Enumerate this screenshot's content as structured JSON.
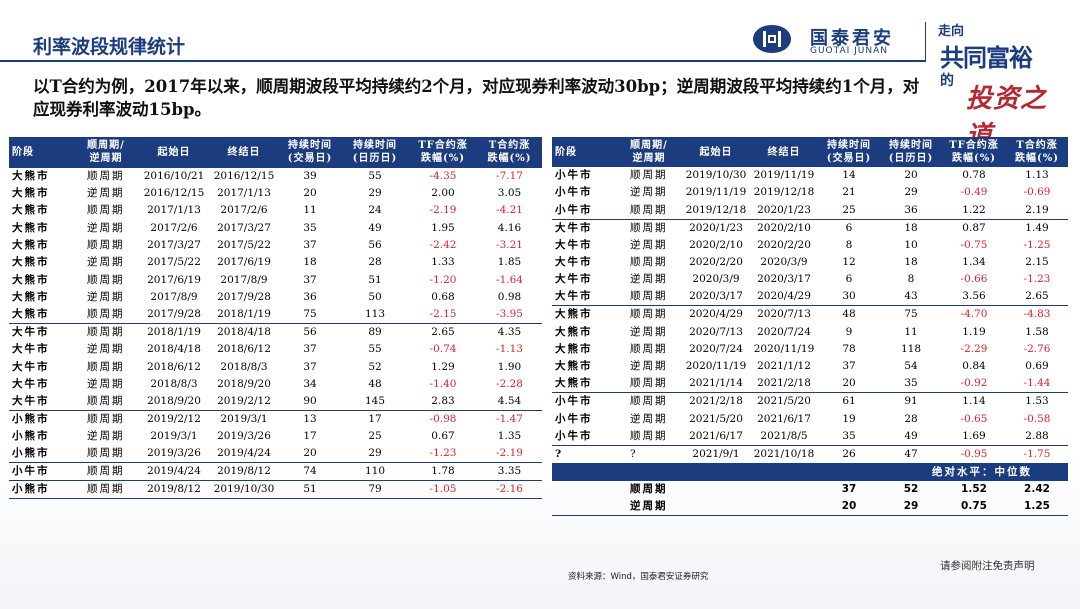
{
  "title": "利率波段规律统计",
  "brand": {
    "cn": "国泰君安",
    "en": "GUOTAI JUNAN",
    "slogan_lines": [
      "走向",
      "共同富裕",
      "的",
      "投资之道"
    ]
  },
  "intro": "以T合约为例，2017年以来，顺周期波段平均持续约2个月，对应现券利率波动30bp；逆周期波段平均持续约1个月，对应现券利率波动15bp。",
  "headers": {
    "stage": "阶段",
    "period": [
      "顺周期/",
      "逆周期"
    ],
    "start": "起始日",
    "end": "终结日",
    "trade_days": [
      "持续时间",
      "(交易日)"
    ],
    "cal_days": [
      "持续时间",
      "(日历日)"
    ],
    "tf": [
      "TF合约涨",
      "跌幅(%)"
    ],
    "t": [
      "T合约涨",
      "跌幅(%)"
    ]
  },
  "left_rows": [
    {
      "stage": "大熊市",
      "period": "顺周期",
      "start": "2016/10/21",
      "end": "2016/12/15",
      "td": "39",
      "cd": "55",
      "tf": "-4.35",
      "t": "-7.17",
      "grp": true
    },
    {
      "stage": "大熊市",
      "period": "逆周期",
      "start": "2016/12/15",
      "end": "2017/1/13",
      "td": "20",
      "cd": "29",
      "tf": "2.00",
      "t": "3.05"
    },
    {
      "stage": "大熊市",
      "period": "顺周期",
      "start": "2017/1/13",
      "end": "2017/2/6",
      "td": "11",
      "cd": "24",
      "tf": "-2.19",
      "t": "-4.21"
    },
    {
      "stage": "大熊市",
      "period": "逆周期",
      "start": "2017/2/6",
      "end": "2017/3/27",
      "td": "35",
      "cd": "49",
      "tf": "1.95",
      "t": "4.16"
    },
    {
      "stage": "大熊市",
      "period": "顺周期",
      "start": "2017/3/27",
      "end": "2017/5/22",
      "td": "37",
      "cd": "56",
      "tf": "-2.42",
      "t": "-3.21"
    },
    {
      "stage": "大熊市",
      "period": "逆周期",
      "start": "2017/5/22",
      "end": "2017/6/19",
      "td": "18",
      "cd": "28",
      "tf": "1.33",
      "t": "1.85"
    },
    {
      "stage": "大熊市",
      "period": "顺周期",
      "start": "2017/6/19",
      "end": "2017/8/9",
      "td": "37",
      "cd": "51",
      "tf": "-1.20",
      "t": "-1.64"
    },
    {
      "stage": "大熊市",
      "period": "逆周期",
      "start": "2017/8/9",
      "end": "2017/9/28",
      "td": "36",
      "cd": "50",
      "tf": "0.68",
      "t": "0.98"
    },
    {
      "stage": "大熊市",
      "period": "顺周期",
      "start": "2017/9/28",
      "end": "2018/1/19",
      "td": "75",
      "cd": "113",
      "tf": "-2.15",
      "t": "-3.95"
    },
    {
      "stage": "大牛市",
      "period": "顺周期",
      "start": "2018/1/19",
      "end": "2018/4/18",
      "td": "56",
      "cd": "89",
      "tf": "2.65",
      "t": "4.35",
      "grp": true
    },
    {
      "stage": "大牛市",
      "period": "逆周期",
      "start": "2018/4/18",
      "end": "2018/6/12",
      "td": "37",
      "cd": "55",
      "tf": "-0.74",
      "t": "-1.13"
    },
    {
      "stage": "大牛市",
      "period": "顺周期",
      "start": "2018/6/12",
      "end": "2018/8/3",
      "td": "37",
      "cd": "52",
      "tf": "1.29",
      "t": "1.90"
    },
    {
      "stage": "大牛市",
      "period": "逆周期",
      "start": "2018/8/3",
      "end": "2018/9/20",
      "td": "34",
      "cd": "48",
      "tf": "-1.40",
      "t": "-2.28"
    },
    {
      "stage": "大牛市",
      "period": "顺周期",
      "start": "2018/9/20",
      "end": "2019/2/12",
      "td": "90",
      "cd": "145",
      "tf": "2.83",
      "t": "4.54"
    },
    {
      "stage": "小熊市",
      "period": "顺周期",
      "start": "2019/2/12",
      "end": "2019/3/1",
      "td": "13",
      "cd": "17",
      "tf": "-0.98",
      "t": "-1.47",
      "grp": true
    },
    {
      "stage": "小熊市",
      "period": "逆周期",
      "start": "2019/3/1",
      "end": "2019/3/26",
      "td": "17",
      "cd": "25",
      "tf": "0.67",
      "t": "1.35"
    },
    {
      "stage": "小熊市",
      "period": "顺周期",
      "start": "2019/3/26",
      "end": "2019/4/24",
      "td": "20",
      "cd": "29",
      "tf": "-1.23",
      "t": "-2.19"
    },
    {
      "stage": "小牛市",
      "period": "顺周期",
      "start": "2019/4/24",
      "end": "2019/8/12",
      "td": "74",
      "cd": "110",
      "tf": "1.78",
      "t": "3.35",
      "grp": true
    },
    {
      "stage": "小熊市",
      "period": "顺周期",
      "start": "2019/8/12",
      "end": "2019/10/30",
      "td": "51",
      "cd": "79",
      "tf": "-1.05",
      "t": "-2.16",
      "grp": true
    }
  ],
  "right_rows": [
    {
      "stage": "小牛市",
      "period": "顺周期",
      "start": "2019/10/30",
      "end": "2019/11/19",
      "td": "14",
      "cd": "20",
      "tf": "0.78",
      "t": "1.13"
    },
    {
      "stage": "小牛市",
      "period": "逆周期",
      "start": "2019/11/19",
      "end": "2019/12/18",
      "td": "21",
      "cd": "29",
      "tf": "-0.49",
      "t": "-0.69"
    },
    {
      "stage": "小牛市",
      "period": "顺周期",
      "start": "2019/12/18",
      "end": "2020/1/23",
      "td": "25",
      "cd": "36",
      "tf": "1.22",
      "t": "2.19"
    },
    {
      "stage": "大牛市",
      "period": "顺周期",
      "start": "2020/1/23",
      "end": "2020/2/10",
      "td": "6",
      "cd": "18",
      "tf": "0.87",
      "t": "1.49",
      "grp": true
    },
    {
      "stage": "大牛市",
      "period": "逆周期",
      "start": "2020/2/10",
      "end": "2020/2/20",
      "td": "8",
      "cd": "10",
      "tf": "-0.75",
      "t": "-1.25"
    },
    {
      "stage": "大牛市",
      "period": "顺周期",
      "start": "2020/2/20",
      "end": "2020/3/9",
      "td": "12",
      "cd": "18",
      "tf": "1.34",
      "t": "2.15"
    },
    {
      "stage": "大牛市",
      "period": "逆周期",
      "start": "2020/3/9",
      "end": "2020/3/17",
      "td": "6",
      "cd": "8",
      "tf": "-0.66",
      "t": "-1.23"
    },
    {
      "stage": "大牛市",
      "period": "顺周期",
      "start": "2020/3/17",
      "end": "2020/4/29",
      "td": "30",
      "cd": "43",
      "tf": "3.56",
      "t": "2.65"
    },
    {
      "stage": "大熊市",
      "period": "顺周期",
      "start": "2020/4/29",
      "end": "2020/7/13",
      "td": "48",
      "cd": "75",
      "tf": "-4.70",
      "t": "-4.83",
      "grp": true
    },
    {
      "stage": "大熊市",
      "period": "逆周期",
      "start": "2020/7/13",
      "end": "2020/7/24",
      "td": "9",
      "cd": "11",
      "tf": "1.19",
      "t": "1.58"
    },
    {
      "stage": "大熊市",
      "period": "顺周期",
      "start": "2020/7/24",
      "end": "2020/11/19",
      "td": "78",
      "cd": "118",
      "tf": "-2.29",
      "t": "-2.76"
    },
    {
      "stage": "大熊市",
      "period": "逆周期",
      "start": "2020/11/19",
      "end": "2021/1/12",
      "td": "37",
      "cd": "54",
      "tf": "0.84",
      "t": "0.69"
    },
    {
      "stage": "大熊市",
      "period": "顺周期",
      "start": "2021/1/14",
      "end": "2021/2/18",
      "td": "20",
      "cd": "35",
      "tf": "-0.92",
      "t": "-1.44"
    },
    {
      "stage": "小牛市",
      "period": "顺周期",
      "start": "2021/2/18",
      "end": "2021/5/20",
      "td": "61",
      "cd": "91",
      "tf": "1.14",
      "t": "1.53",
      "grp": true
    },
    {
      "stage": "小牛市",
      "period": "逆周期",
      "start": "2021/5/20",
      "end": "2021/6/17",
      "td": "19",
      "cd": "28",
      "tf": "-0.65",
      "t": "-0.58"
    },
    {
      "stage": "小牛市",
      "period": "顺周期",
      "start": "2021/6/17",
      "end": "2021/8/5",
      "td": "35",
      "cd": "49",
      "tf": "1.69",
      "t": "2.88"
    },
    {
      "stage": "?",
      "period": "?",
      "start": "2021/9/1",
      "end": "2021/10/18",
      "td": "26",
      "cd": "47",
      "tf": "-0.95",
      "t": "-1.75",
      "grp": true
    }
  ],
  "summary": {
    "label": "绝对水平：中位数",
    "rows": [
      {
        "period": "顺周期",
        "td": "37",
        "cd": "52",
        "tf": "1.52",
        "t": "2.42"
      },
      {
        "period": "逆周期",
        "td": "20",
        "cd": "29",
        "tf": "0.75",
        "t": "1.25"
      }
    ]
  },
  "source": "资料来源：Wind，国泰君安证券研究",
  "disclaimer": "请参阅附注免责声明",
  "colors": {
    "brand_blue": "#1c3c80",
    "negative_red": "#e0202a"
  }
}
